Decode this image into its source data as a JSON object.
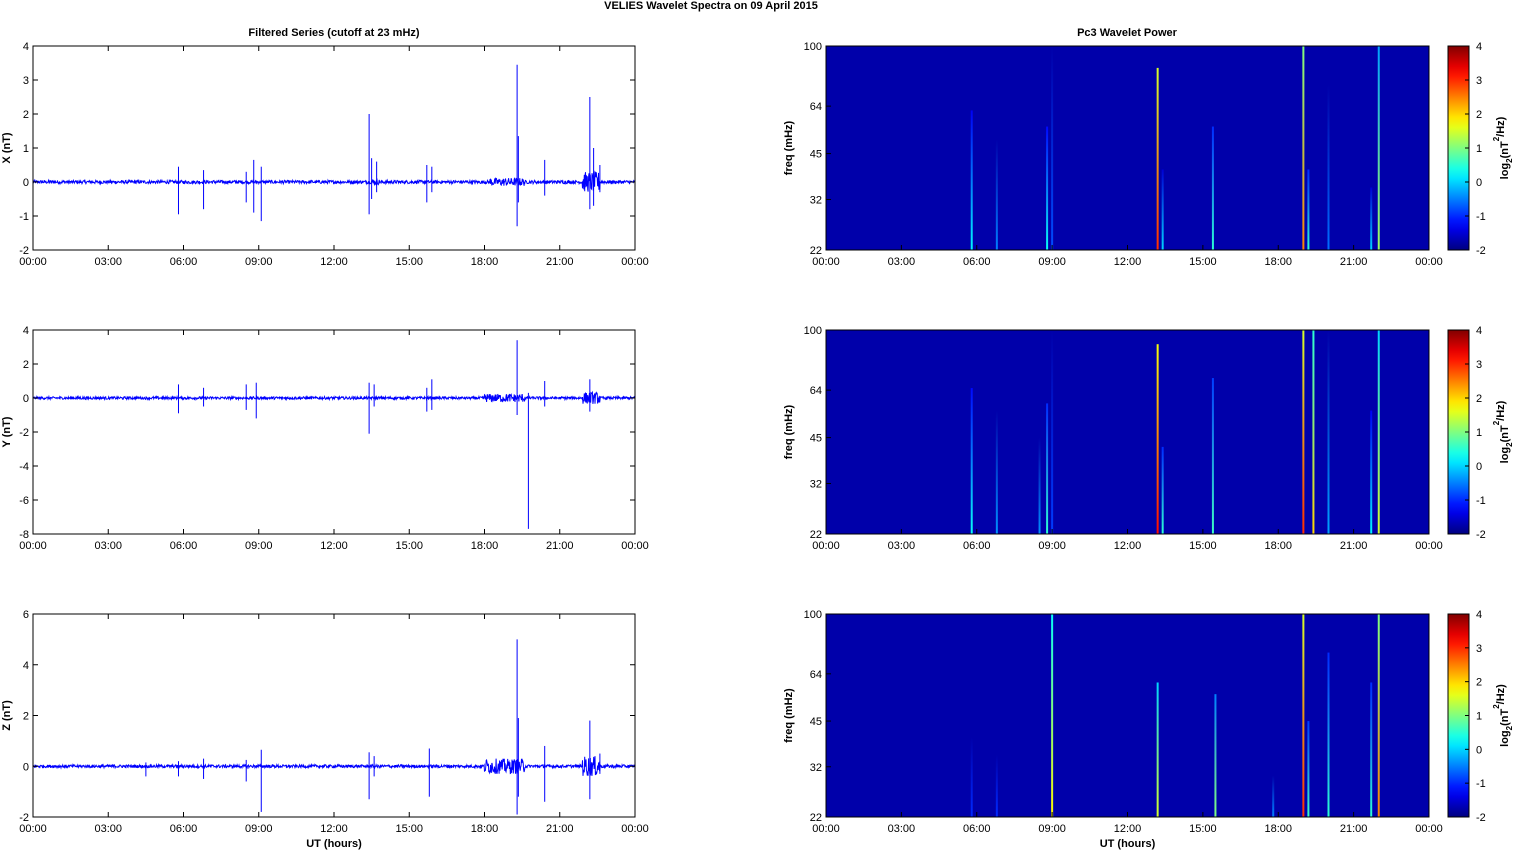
{
  "figure": {
    "title": "VELIES Wavelet Spectra on 09 April     2015",
    "left_title": "Filtered Series (cutoff at 23 mHz)",
    "right_title": "Pc3 Wavelet Power",
    "xlabel": "UT (hours)"
  },
  "chart_data": [
    {
      "type": "line",
      "title": "Filtered Series (cutoff at 23 mHz)",
      "ylabel": "X (nT)",
      "xlabel": "",
      "x_ticks": [
        "00:00",
        "03:00",
        "06:00",
        "09:00",
        "12:00",
        "15:00",
        "18:00",
        "21:00",
        "00:00"
      ],
      "xlim_hours": [
        0,
        24
      ],
      "ylim": [
        -2,
        4
      ],
      "y_ticks": [
        -2,
        -1,
        0,
        1,
        2,
        3,
        4
      ],
      "color": "#0000ff",
      "noise_amplitude": 0.05,
      "bursts": [
        [
          18.2,
          19.6,
          0.12
        ],
        [
          21.9,
          22.6,
          0.3
        ],
        [
          13.5,
          13.8,
          0.08
        ]
      ],
      "spikes": [
        {
          "t": 5.8,
          "max": 0.45,
          "min": -0.95
        },
        {
          "t": 6.8,
          "max": 0.35,
          "min": -0.8
        },
        {
          "t": 8.5,
          "max": 0.3,
          "min": -0.6
        },
        {
          "t": 8.8,
          "max": 0.65,
          "min": -0.9
        },
        {
          "t": 9.1,
          "max": 0.45,
          "min": -1.15
        },
        {
          "t": 13.4,
          "max": 2.0,
          "min": -0.95
        },
        {
          "t": 13.5,
          "max": 0.7,
          "min": -0.5
        },
        {
          "t": 13.7,
          "max": 0.6,
          "min": -0.3
        },
        {
          "t": 15.7,
          "max": 0.5,
          "min": -0.6
        },
        {
          "t": 15.9,
          "max": 0.45,
          "min": -0.3
        },
        {
          "t": 19.3,
          "max": 3.45,
          "min": -1.3
        },
        {
          "t": 19.35,
          "max": 1.35,
          "min": -0.6
        },
        {
          "t": 20.4,
          "max": 0.65,
          "min": -0.4
        },
        {
          "t": 22.2,
          "max": 2.5,
          "min": -0.8
        },
        {
          "t": 22.35,
          "max": 1.0,
          "min": -0.7
        },
        {
          "t": 22.6,
          "max": 0.5,
          "min": -0.3
        }
      ]
    },
    {
      "type": "line",
      "title": "",
      "ylabel": "Y (nT)",
      "xlabel": "",
      "x_ticks": [
        "00:00",
        "03:00",
        "06:00",
        "09:00",
        "12:00",
        "15:00",
        "18:00",
        "21:00",
        "00:00"
      ],
      "xlim_hours": [
        0,
        24
      ],
      "ylim": [
        -8,
        4
      ],
      "y_ticks": [
        -8,
        -6,
        -4,
        -2,
        0,
        2,
        4
      ],
      "color": "#0000ff",
      "noise_amplitude": 0.08,
      "bursts": [
        [
          18.0,
          19.6,
          0.25
        ],
        [
          21.9,
          22.6,
          0.35
        ]
      ],
      "spikes": [
        {
          "t": 5.8,
          "max": 0.8,
          "min": -0.9
        },
        {
          "t": 6.8,
          "max": 0.6,
          "min": -0.5
        },
        {
          "t": 8.5,
          "max": 0.8,
          "min": -0.7
        },
        {
          "t": 8.9,
          "max": 0.9,
          "min": -1.2
        },
        {
          "t": 13.4,
          "max": 0.9,
          "min": -2.1
        },
        {
          "t": 13.6,
          "max": 0.8,
          "min": -0.5
        },
        {
          "t": 15.7,
          "max": 0.6,
          "min": -0.8
        },
        {
          "t": 15.9,
          "max": 1.1,
          "min": -0.7
        },
        {
          "t": 19.3,
          "max": 3.4,
          "min": -1.0
        },
        {
          "t": 19.75,
          "max": 0.3,
          "min": -7.7
        },
        {
          "t": 20.4,
          "max": 1.0,
          "min": -0.5
        },
        {
          "t": 22.2,
          "max": 1.1,
          "min": -0.8
        }
      ]
    },
    {
      "type": "line",
      "title": "",
      "ylabel": "Z (nT)",
      "xlabel": "UT (hours)",
      "x_ticks": [
        "00:00",
        "03:00",
        "06:00",
        "09:00",
        "12:00",
        "15:00",
        "18:00",
        "21:00",
        "00:00"
      ],
      "xlim_hours": [
        0,
        24
      ],
      "ylim": [
        -2,
        6
      ],
      "y_ticks": [
        -2,
        0,
        2,
        4,
        6
      ],
      "color": "#0000ff",
      "noise_amplitude": 0.06,
      "bursts": [
        [
          18.0,
          19.6,
          0.3
        ],
        [
          21.9,
          22.6,
          0.4
        ]
      ],
      "spikes": [
        {
          "t": 4.5,
          "max": 0.15,
          "min": -0.4
        },
        {
          "t": 5.8,
          "max": 0.2,
          "min": -0.4
        },
        {
          "t": 6.8,
          "max": 0.3,
          "min": -0.5
        },
        {
          "t": 8.5,
          "max": 0.25,
          "min": -0.6
        },
        {
          "t": 9.1,
          "max": 0.65,
          "min": -1.8
        },
        {
          "t": 13.4,
          "max": 0.55,
          "min": -1.3
        },
        {
          "t": 13.6,
          "max": 0.4,
          "min": -0.4
        },
        {
          "t": 15.8,
          "max": 0.7,
          "min": -1.2
        },
        {
          "t": 19.3,
          "max": 5.0,
          "min": -1.9
        },
        {
          "t": 19.35,
          "max": 1.9,
          "min": -1.2
        },
        {
          "t": 20.4,
          "max": 0.8,
          "min": -1.4
        },
        {
          "t": 22.2,
          "max": 1.8,
          "min": -1.3
        },
        {
          "t": 22.6,
          "max": 0.5,
          "min": -0.3
        }
      ]
    },
    {
      "type": "heatmap",
      "title": "Pc3 Wavelet Power",
      "ylabel": "freq (mHz)",
      "xlabel": "",
      "x_ticks": [
        "00:00",
        "03:00",
        "06:00",
        "09:00",
        "12:00",
        "15:00",
        "18:00",
        "21:00",
        "00:00"
      ],
      "xlim_hours": [
        0,
        24
      ],
      "y_scale": "log",
      "ylim": [
        22,
        100
      ],
      "y_ticks": [
        22,
        32,
        45,
        64,
        100
      ],
      "colorbar_label": "log2(nT^2/Hz)",
      "clim": [
        -2,
        4
      ],
      "colorbar_ticks": [
        -2,
        -1,
        0,
        1,
        2,
        3,
        4
      ],
      "colormap": "jet",
      "background_level": -1.75,
      "streaks": [
        {
          "t": 5.8,
          "level": 0.2,
          "fmax": 62
        },
        {
          "t": 6.8,
          "level": -0.5,
          "fmax": 50
        },
        {
          "t": 8.8,
          "level": 0.3,
          "fmax": 55
        },
        {
          "t": 9.0,
          "level": -0.8,
          "fmax": 100
        },
        {
          "t": 13.2,
          "level": 3.0,
          "fmax": 85
        },
        {
          "t": 13.4,
          "level": 0.0,
          "fmax": 40
        },
        {
          "t": 15.4,
          "level": 0.5,
          "fmax": 55
        },
        {
          "t": 19.0,
          "level": 2.5,
          "fmax": 100
        },
        {
          "t": 19.2,
          "level": 0.5,
          "fmax": 40
        },
        {
          "t": 20.0,
          "level": -0.6,
          "fmax": 75
        },
        {
          "t": 21.7,
          "level": 0.0,
          "fmax": 35
        },
        {
          "t": 22.0,
          "level": 1.2,
          "fmax": 100
        }
      ]
    },
    {
      "type": "heatmap",
      "title": "",
      "ylabel": "freq (mHz)",
      "xlabel": "",
      "x_ticks": [
        "00:00",
        "03:00",
        "06:00",
        "09:00",
        "12:00",
        "15:00",
        "18:00",
        "21:00",
        "00:00"
      ],
      "xlim_hours": [
        0,
        24
      ],
      "y_scale": "log",
      "ylim": [
        22,
        100
      ],
      "y_ticks": [
        22,
        32,
        45,
        64,
        100
      ],
      "colorbar_label": "log2(nT^2/Hz)",
      "clim": [
        -2,
        4
      ],
      "colorbar_ticks": [
        -2,
        -1,
        0,
        1,
        2,
        3,
        4
      ],
      "colormap": "jet",
      "background_level": -1.75,
      "streaks": [
        {
          "t": 5.8,
          "level": 0.3,
          "fmax": 65
        },
        {
          "t": 6.8,
          "level": -0.4,
          "fmax": 55
        },
        {
          "t": 8.5,
          "level": -0.4,
          "fmax": 45
        },
        {
          "t": 8.8,
          "level": 0.5,
          "fmax": 58
        },
        {
          "t": 9.0,
          "level": -0.9,
          "fmax": 100
        },
        {
          "t": 13.2,
          "level": 3.2,
          "fmax": 90
        },
        {
          "t": 13.4,
          "level": 0.5,
          "fmax": 42
        },
        {
          "t": 15.4,
          "level": 0.6,
          "fmax": 70
        },
        {
          "t": 19.0,
          "level": 3.0,
          "fmax": 100
        },
        {
          "t": 19.4,
          "level": 2.0,
          "fmax": 100
        },
        {
          "t": 20.0,
          "level": -0.3,
          "fmax": 100
        },
        {
          "t": 21.7,
          "level": 0.2,
          "fmax": 55
        },
        {
          "t": 22.0,
          "level": 1.5,
          "fmax": 100
        }
      ]
    },
    {
      "type": "heatmap",
      "title": "",
      "ylabel": "freq (mHz)",
      "xlabel": "UT (hours)",
      "x_ticks": [
        "00:00",
        "03:00",
        "06:00",
        "09:00",
        "12:00",
        "15:00",
        "18:00",
        "21:00",
        "00:00"
      ],
      "xlim_hours": [
        0,
        24
      ],
      "y_scale": "log",
      "ylim": [
        22,
        100
      ],
      "y_ticks": [
        22,
        32,
        45,
        64,
        100
      ],
      "colorbar_label": "log2(nT^2/Hz)",
      "clim": [
        -2,
        4
      ],
      "colorbar_ticks": [
        -2,
        -1,
        0,
        1,
        2,
        3,
        4
      ],
      "colormap": "jet",
      "background_level": -1.75,
      "streaks": [
        {
          "t": 5.8,
          "level": -1.0,
          "fmax": 40
        },
        {
          "t": 6.8,
          "level": -1.0,
          "fmax": 35
        },
        {
          "t": 9.0,
          "level": 1.8,
          "fmax": 100
        },
        {
          "t": 13.2,
          "level": 1.5,
          "fmax": 60
        },
        {
          "t": 15.5,
          "level": 1.0,
          "fmax": 55
        },
        {
          "t": 17.8,
          "level": -0.5,
          "fmax": 30
        },
        {
          "t": 19.0,
          "level": 3.0,
          "fmax": 100
        },
        {
          "t": 19.2,
          "level": 0.6,
          "fmax": 45
        },
        {
          "t": 20.0,
          "level": 0.5,
          "fmax": 75
        },
        {
          "t": 21.7,
          "level": 0.5,
          "fmax": 60
        },
        {
          "t": 22.0,
          "level": 2.5,
          "fmax": 100
        }
      ]
    }
  ]
}
